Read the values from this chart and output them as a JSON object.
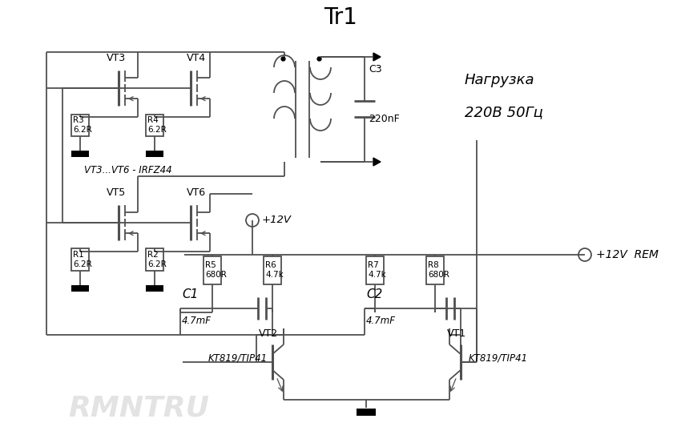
{
  "title": "Tr1",
  "bg_color": "#ffffff",
  "line_color": "#505050",
  "watermark": "RMNTRU",
  "nagr_line1": "Нагрузка",
  "nagr_line2": "220В 50Гц",
  "irfz_label": "VT3...VT6 - IRFZ44",
  "plus12v": "+12V",
  "plus12v_rem": "+12V  REM",
  "c3_label": "C3",
  "c3_val": "220nF",
  "c1_label": "C1",
  "c1_val": "4.7mF",
  "c2_label": "C2",
  "c2_val": "4.7mF",
  "vt3": "VT3",
  "vt4": "VT4",
  "vt5": "VT5",
  "vt6": "VT6",
  "vt1": "VT1",
  "vt2": "VT2",
  "r1": "R1\n6.2R",
  "r2": "R2\n6.2R",
  "r3": "R3\n6.2R",
  "r4": "R4\n6.2R",
  "r5": "R5\n680R",
  "r6": "R6\n4.7k",
  "r7": "R7\n4.7k",
  "r8": "R8\n680R",
  "kt819": "KT819/TIP41"
}
